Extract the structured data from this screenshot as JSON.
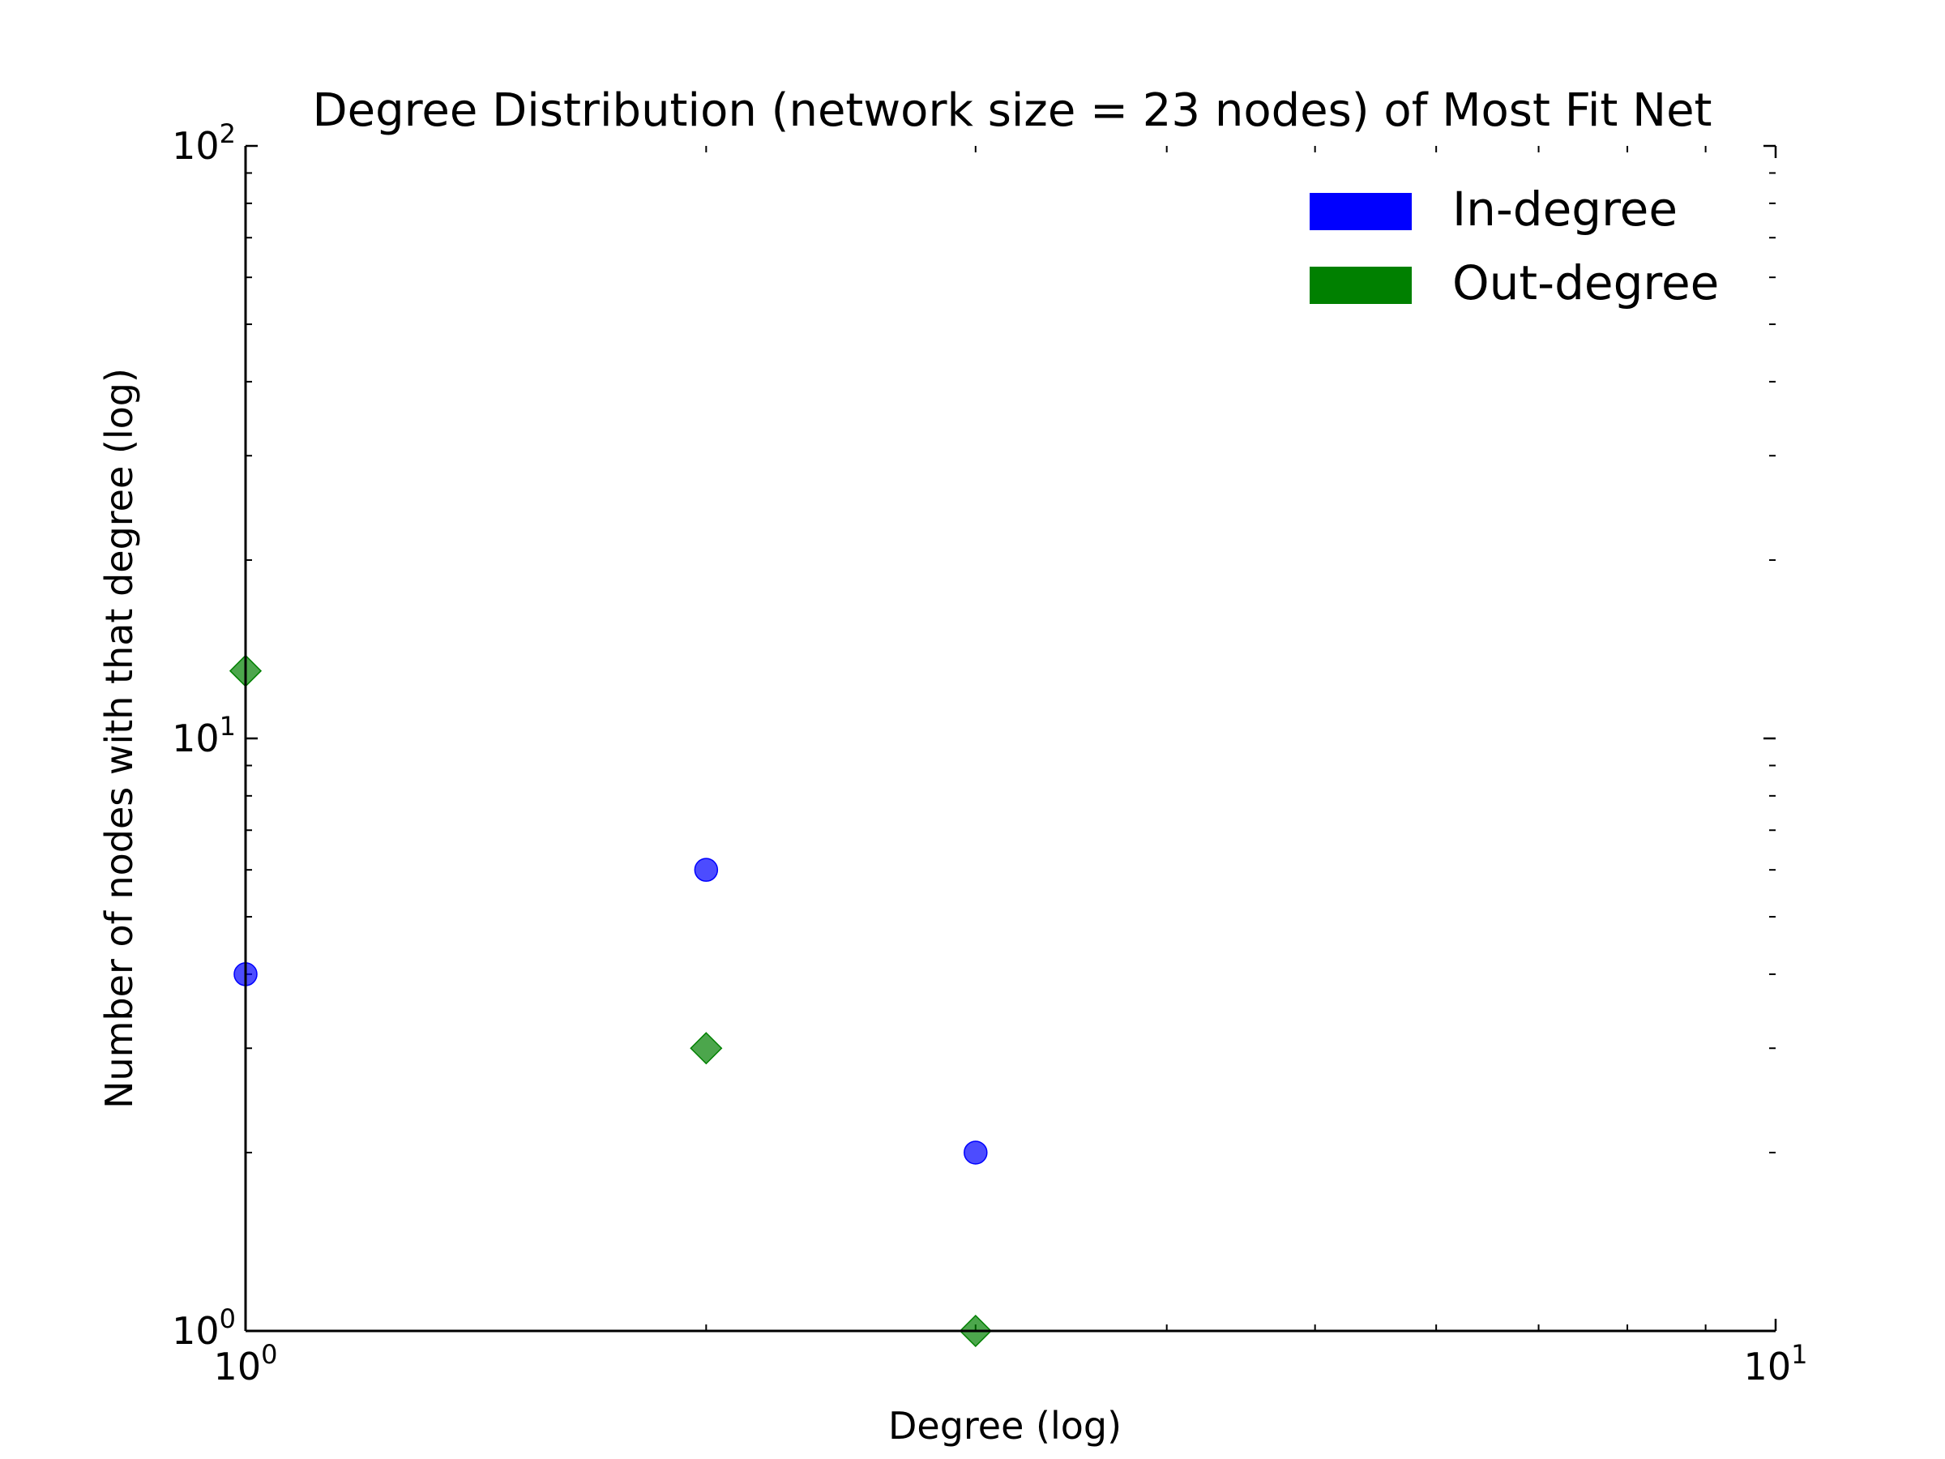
{
  "chart_data": {
    "type": "scatter",
    "title": "Degree Distribution (network size = 23 nodes) of Most Fit Net",
    "xlabel": "Degree (log)",
    "ylabel": "Number of nodes with that degree (log)",
    "xscale": "log",
    "yscale": "log",
    "xlim": [
      1,
      10
    ],
    "ylim": [
      1,
      100
    ],
    "x_ticks": [
      {
        "value": 1,
        "base": "10",
        "exp": "0"
      },
      {
        "value": 10,
        "base": "10",
        "exp": "1"
      }
    ],
    "y_ticks": [
      {
        "value": 1,
        "base": "10",
        "exp": "0"
      },
      {
        "value": 10,
        "base": "10",
        "exp": "1"
      },
      {
        "value": 100,
        "base": "10",
        "exp": "2"
      }
    ],
    "grid": false,
    "legend_position": "top-right",
    "series": [
      {
        "name": "In-degree",
        "marker": "circle",
        "color": "#0000ff",
        "points": [
          {
            "x": 1,
            "y": 4
          },
          {
            "x": 2,
            "y": 6
          },
          {
            "x": 3,
            "y": 2
          }
        ]
      },
      {
        "name": "Out-degree",
        "marker": "diamond",
        "color": "#008000",
        "points": [
          {
            "x": 1,
            "y": 13
          },
          {
            "x": 2,
            "y": 3
          },
          {
            "x": 3,
            "y": 1
          }
        ]
      }
    ]
  }
}
